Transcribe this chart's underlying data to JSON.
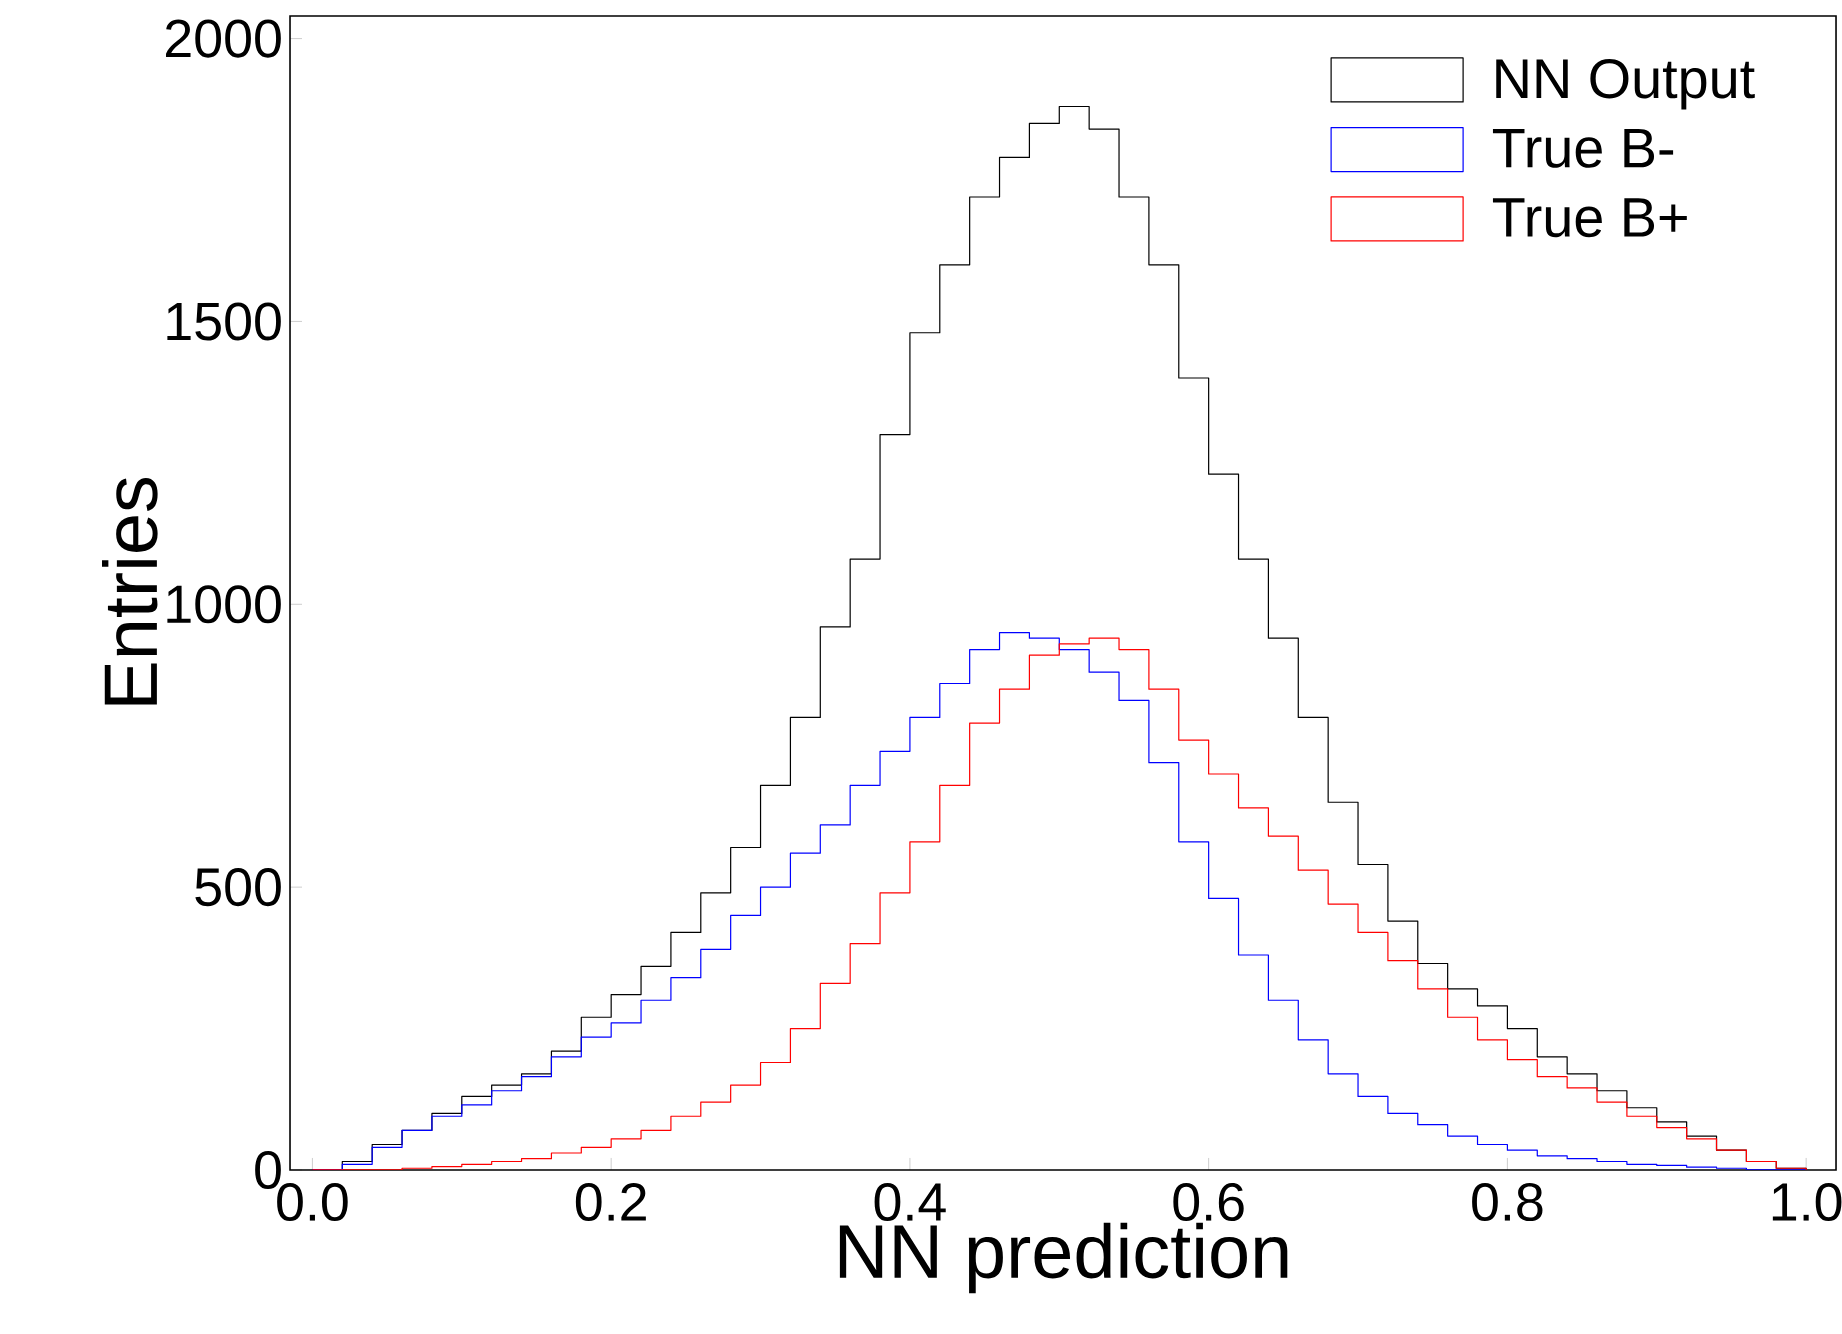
{
  "chart_data": {
    "type": "histogram",
    "xlabel": "NN prediction",
    "ylabel": "Entries",
    "bins": [
      0.0,
      0.02,
      0.04,
      0.06,
      0.08,
      0.1,
      0.12,
      0.14,
      0.16,
      0.18,
      0.2,
      0.22,
      0.24,
      0.26,
      0.28,
      0.3,
      0.32,
      0.34,
      0.36,
      0.38,
      0.4,
      0.42,
      0.44,
      0.46,
      0.48,
      0.5,
      0.52,
      0.54,
      0.56,
      0.58,
      0.6,
      0.62,
      0.64,
      0.66,
      0.68,
      0.7,
      0.72,
      0.74,
      0.76,
      0.78,
      0.8,
      0.82,
      0.84,
      0.86,
      0.88,
      0.9,
      0.92,
      0.94,
      0.96,
      0.98,
      1.0
    ],
    "series": [
      {
        "name": "NN Output",
        "color": "#000000",
        "values": [
          0,
          15,
          45,
          70,
          100,
          130,
          150,
          170,
          210,
          270,
          310,
          360,
          420,
          490,
          570,
          680,
          800,
          960,
          1080,
          1300,
          1480,
          1600,
          1720,
          1790,
          1850,
          1880,
          1840,
          1720,
          1600,
          1400,
          1230,
          1080,
          940,
          800,
          650,
          540,
          440,
          365,
          320,
          290,
          250,
          200,
          170,
          140,
          110,
          85,
          60,
          35,
          15,
          3
        ]
      },
      {
        "name": "True B-",
        "color": "#0000ff",
        "values": [
          0,
          10,
          40,
          70,
          95,
          115,
          140,
          165,
          200,
          235,
          260,
          300,
          340,
          390,
          450,
          500,
          560,
          610,
          680,
          740,
          800,
          860,
          920,
          950,
          940,
          920,
          880,
          830,
          720,
          580,
          480,
          380,
          300,
          230,
          170,
          130,
          100,
          80,
          60,
          45,
          35,
          25,
          20,
          15,
          10,
          8,
          5,
          3,
          0,
          0
        ]
      },
      {
        "name": "True B+",
        "color": "#ff0000",
        "values": [
          0,
          0,
          0,
          3,
          6,
          10,
          15,
          20,
          30,
          40,
          55,
          70,
          95,
          120,
          150,
          190,
          250,
          330,
          400,
          490,
          580,
          680,
          790,
          850,
          910,
          930,
          940,
          920,
          850,
          760,
          700,
          640,
          590,
          530,
          470,
          420,
          370,
          320,
          270,
          230,
          195,
          165,
          145,
          120,
          95,
          75,
          55,
          35,
          15,
          3
        ]
      }
    ],
    "xlim": [
      -0.015,
      1.02
    ],
    "ylim": [
      0,
      2040
    ],
    "xticks": [
      {
        "value": 0.0,
        "label": "0.0"
      },
      {
        "value": 0.2,
        "label": "0.2"
      },
      {
        "value": 0.4,
        "label": "0.4"
      },
      {
        "value": 0.6,
        "label": "0.6"
      },
      {
        "value": 0.8,
        "label": "0.8"
      },
      {
        "value": 1.0,
        "label": "1.0"
      }
    ],
    "yticks": [
      0,
      500,
      1000,
      1500,
      2000
    ],
    "legend": "top right"
  }
}
